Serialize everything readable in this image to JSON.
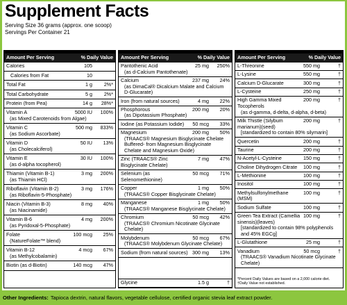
{
  "header": {
    "title": "Supplement Facts",
    "serving_size": "Serving Size 36 grams (approx. one scoop)",
    "servings": "Servings Per Container 21"
  },
  "columns": [
    {
      "amount_header": "Amount Per Serving",
      "dv_header": "% Daily Value",
      "rows": [
        {
          "name": "Calories",
          "amount": "105"
        },
        {
          "name": "Calories from Fat",
          "amount": "10"
        },
        {
          "name": "Total Fat",
          "amount": "1 g",
          "dv": "2%*"
        },
        {
          "name": "Total Carbohydrate",
          "amount": "5 g",
          "dv": "2%*"
        },
        {
          "name": "Protein (from Pea)",
          "amount": "14 g",
          "dv": "28%*"
        },
        {
          "name": "Vitamin A",
          "amount": "5000 IU",
          "dv": "100%",
          "detail": "(as Mixed Carotenoids from Algae)"
        },
        {
          "name": "Vitamin C",
          "amount": "500 mg",
          "dv": "833%",
          "detail": "(as Sodium Ascorbate)"
        },
        {
          "name": "Vitamin D",
          "amount": "50 IU",
          "dv": "13%",
          "detail": "(as Cholecalciferol)"
        },
        {
          "name": "Vitamin E",
          "amount": "30 IU",
          "dv": "100%",
          "detail": "(as d-alpha tocopherol)"
        },
        {
          "name": "Thiamin (Vitamin B-1)",
          "amount": "3 mg",
          "dv": "200%",
          "detail": "(as Thiamin HCl)"
        },
        {
          "name": "Riboflavin (Vitamin B-2)",
          "amount": "3 mg",
          "dv": "176%",
          "detail": "(as Riboflavin-5-Phosphate)"
        },
        {
          "name": "Niacin (Vitamin B-3)",
          "amount": "8 mg",
          "dv": "40%",
          "detail": "(as Niacinamide)"
        },
        {
          "name": "Vitamin B-6",
          "amount": "4 mg",
          "dv": "200%",
          "detail": "(as Pyridoxal-5-Phosphate)"
        },
        {
          "name": "Folate",
          "amount": "100 mcg",
          "dv": "25%",
          "detail": "(NatureFolate™ blend)"
        },
        {
          "name": "Vitamin B-12",
          "amount": "4 mcg",
          "dv": "67%",
          "detail": "(as Methylcobalamin)"
        },
        {
          "name": "Biotin (as d-Biotin)",
          "amount": "140 mcg",
          "dv": "47%"
        }
      ]
    },
    {
      "amount_header": "Amount Per Serving",
      "dv_header": "% Daily Value",
      "rows": [
        {
          "name": "Pantothenic Acid",
          "amount": "25 mg",
          "dv": "250%",
          "detail": "(as d-Calcium Pantothenate)"
        },
        {
          "name": "Calcium",
          "amount": "237 mg",
          "dv": "24%",
          "detail": "(as DimaCal® Dicalcium Malate and Calcium D-Glucarate)"
        },
        {
          "name": "Iron (from natural sources)",
          "amount": "4 mg",
          "dv": "22%"
        },
        {
          "name": "Phosphorous",
          "amount": "200 mg",
          "dv": "20%",
          "detail": "(as Dipotassium Phosphate)"
        },
        {
          "name": "Iodine (as Potassium Iodide)",
          "amount": "50 mcg",
          "dv": "33%"
        },
        {
          "name": "Magnesium",
          "amount": "200 mg",
          "dv": "50%",
          "detail": "(TRAACS® Magnesium Bisglycinate Chelate Buffered- from Magnesium Bisglycinate Chelate and Magnesium Oxide)"
        },
        {
          "name": "Zinc (TRAACS® Zinc Bisglycinate Chelate)",
          "amount": "7 mg",
          "dv": "47%"
        },
        {
          "name": "Selenium (as Selenomethionine)",
          "amount": "50 mcg",
          "dv": "71%"
        },
        {
          "name": "Copper",
          "amount": "1 mg",
          "dv": "50%",
          "detail": "(TRAACS® Copper Bisglycinate Chelate)"
        },
        {
          "name": "Manganese",
          "amount": "1 mg",
          "dv": "50%",
          "detail": "(TRAACS® Manganese Bisglycinate Chelate)"
        },
        {
          "name": "Chromium",
          "amount": "50 mcg",
          "dv": "42%",
          "detail": "(TRAACS® Chromium Nicotinate Glycinate Chelate)"
        },
        {
          "name": "Molybdenum",
          "amount": "50 mcg",
          "dv": "67%",
          "detail": "(TRAACS® Molybdenum Glycinate Chelate)"
        },
        {
          "name": "Sodium (from natural sources)",
          "amount": "300 mg",
          "dv": "13%"
        },
        {
          "name": "Glycine",
          "amount": "1.5 g",
          "dv": "†"
        }
      ]
    },
    {
      "amount_header": "Amount Per Serving",
      "dv_header": "% Daily Value",
      "rows": [
        {
          "name": "L-Threonine",
          "amount": "550 mg",
          "dv": "†"
        },
        {
          "name": "L-Lysine",
          "amount": "550 mg",
          "dv": "†"
        },
        {
          "name": "Calcium D-Glucarate",
          "amount": "300 mg",
          "dv": "†"
        },
        {
          "name": "L-Cysteine",
          "amount": "250 mg",
          "dv": "†"
        },
        {
          "name": "High Gamma Mixed Tocopherols",
          "amount": "200 mg",
          "dv": "†",
          "detail": "(as d-gamma, d-delta, d-alpha, d-beta)"
        },
        {
          "name": "Milk Thistle (Silybum marianum)(seed)",
          "amount": "200 mg",
          "dv": "†",
          "detail": "[standardized to contain 80% silymarin]"
        },
        {
          "name": "Quercetin",
          "amount": "200 mg",
          "dv": "†"
        },
        {
          "name": "Taurine",
          "amount": "200 mg",
          "dv": "†"
        },
        {
          "name": "N-Acetyl-L-Cysteine",
          "amount": "150 mg",
          "dv": "†"
        },
        {
          "name": "Choline Dihydrogen Citrate",
          "amount": "100 mg",
          "dv": "†"
        },
        {
          "name": "L-Methionine",
          "amount": "100 mg",
          "dv": "†"
        },
        {
          "name": "Inositol",
          "amount": "100 mg",
          "dv": "†"
        },
        {
          "name": "Methylsulfonylmethane (MSM)",
          "amount": "100 mg",
          "dv": "†"
        },
        {
          "name": "Sodium Sulfate",
          "amount": "100 mg",
          "dv": "†"
        },
        {
          "name": "Green Tea Extract (Camellia sinensis)(leaves)",
          "amount": "100 mg",
          "dv": "†",
          "detail": "[standardized to contain 98% polyphenols and 45% EGCg]"
        },
        {
          "name": "L-Glutathione",
          "amount": "25 mg",
          "dv": "†"
        },
        {
          "name": "Vanadium",
          "amount": "50 mcg",
          "dv": "†",
          "detail": "(TRAACS® Vanadium Nicotinate Glycinate Chelate)"
        }
      ]
    }
  ],
  "footnote": [
    "*Percent Daily Values are based on a 2,000 calorie diet.",
    "†Daily Value not established."
  ],
  "other_ingredients": {
    "label": "Other Ingredients:",
    "text": "Tapioca dextrin, natural flavors, vegetable cellulose, certified organic stevia leaf extract powder."
  }
}
